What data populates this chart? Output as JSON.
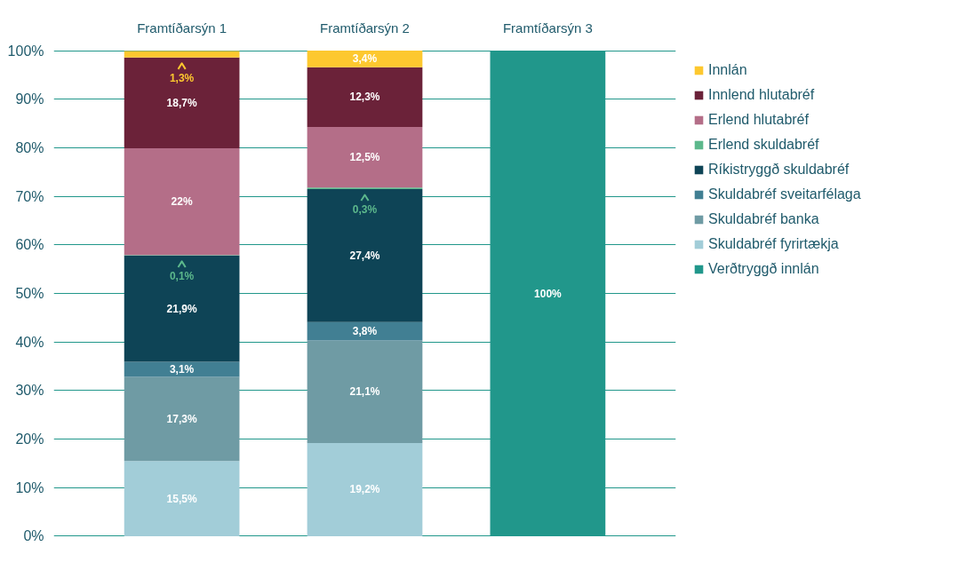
{
  "chart_data": {
    "type": "bar",
    "stacked": true,
    "categories": [
      "Framtíðarsýn 1",
      "Framtíðarsýn 2",
      "Framtíðarsýn 3"
    ],
    "series": [
      {
        "name": "Verðtryggð innlán",
        "color": "#21978b",
        "values": [
          0,
          0,
          100
        ],
        "value_labels": [
          null,
          null,
          "100%"
        ]
      },
      {
        "name": "Skuldabréf fyrirtækja",
        "color": "#a2cdd8",
        "values": [
          15.5,
          19.2,
          0
        ],
        "value_labels": [
          "15,5%",
          "19,2%",
          null
        ]
      },
      {
        "name": "Skuldabréf banka",
        "color": "#6f9ba4",
        "values": [
          17.3,
          21.1,
          0
        ],
        "value_labels": [
          "17,3%",
          "21,1%",
          null
        ]
      },
      {
        "name": "Skuldabréf sveitarfélaga",
        "color": "#417f93",
        "values": [
          3.1,
          3.8,
          0
        ],
        "value_labels": [
          "3,1%",
          "3,8%",
          null
        ]
      },
      {
        "name": "Ríkistryggð skuldabréf",
        "color": "#0e4456",
        "values": [
          21.9,
          27.4,
          0
        ],
        "value_labels": [
          "21,9%",
          "27,4%",
          null
        ]
      },
      {
        "name": "Erlend skuldabréf",
        "color": "#5cb88c",
        "values": [
          0.1,
          0.3,
          0
        ],
        "value_labels": [
          "0,1%",
          "0,3%",
          null
        ]
      },
      {
        "name": "Erlend hlutabréf",
        "color": "#b46e88",
        "values": [
          22,
          12.5,
          0
        ],
        "value_labels": [
          "22%",
          "12,5%",
          null
        ]
      },
      {
        "name": "Innlend hlutabréf",
        "color": "#6b2239",
        "values": [
          18.7,
          12.3,
          0
        ],
        "value_labels": [
          "18,7%",
          "12,3%",
          null
        ]
      },
      {
        "name": "Innlán",
        "color": "#fdc82f",
        "values": [
          1.3,
          3.4,
          0
        ],
        "value_labels": [
          "1,3%",
          "3,4%",
          null
        ]
      }
    ],
    "ylim": [
      0,
      100
    ],
    "yticks": [
      {
        "value": 0,
        "label": "0%"
      },
      {
        "value": 10,
        "label": "10%"
      },
      {
        "value": 20,
        "label": "20%"
      },
      {
        "value": 30,
        "label": "30%"
      },
      {
        "value": 40,
        "label": "40%"
      },
      {
        "value": 50,
        "label": "50%"
      },
      {
        "value": 60,
        "label": "60%"
      },
      {
        "value": 70,
        "label": "70%"
      },
      {
        "value": 80,
        "label": "80%"
      },
      {
        "value": 90,
        "label": "90%"
      },
      {
        "value": 100,
        "label": "100%"
      }
    ],
    "grid": "y",
    "legend": "right"
  }
}
